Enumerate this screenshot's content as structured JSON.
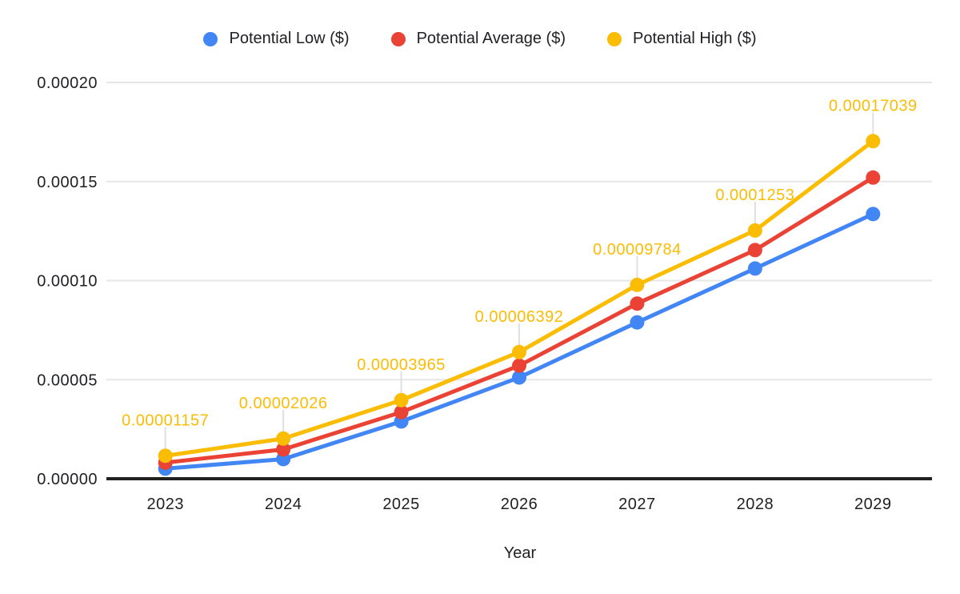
{
  "colors": {
    "background": "#ffffff",
    "grid_line": "#e6e6e6",
    "axis_line": "#212121",
    "connector_line": "#e0e0e0",
    "text": "#202124",
    "series_low": "#4285f4",
    "series_average": "#ea4335",
    "series_high": "#fbbc04"
  },
  "legend": {
    "items": [
      {
        "label": "Potential Low ($)",
        "color": "#4285f4"
      },
      {
        "label": "Potential Average ($)",
        "color": "#ea4335"
      },
      {
        "label": "Potential High ($)",
        "color": "#fbbc04"
      }
    ]
  },
  "chart_data": {
    "type": "line",
    "title": "",
    "xlabel": "Year",
    "ylabel": "",
    "categories": [
      "2023",
      "2024",
      "2025",
      "2026",
      "2027",
      "2028",
      "2029"
    ],
    "ylim": [
      0,
      0.0002
    ],
    "yticks": [
      "0.00000",
      "0.00005",
      "0.00010",
      "0.00015",
      "0.00020"
    ],
    "grid": true,
    "legend_position": "top",
    "series": [
      {
        "name": "Potential Low ($)",
        "color": "#4285f4",
        "values": [
          5.1e-06,
          9.9e-06,
          2.89e-05,
          5.11e-05,
          7.89e-05,
          0.0001061,
          0.0001336
        ]
      },
      {
        "name": "Potential Average ($)",
        "color": "#ea4335",
        "values": [
          8.1e-06,
          1.48e-05,
          3.36e-05,
          5.71e-05,
          8.84e-05,
          0.0001154,
          0.000152
        ]
      },
      {
        "name": "Potential High ($)",
        "color": "#fbbc04",
        "values": [
          1.157e-05,
          2.026e-05,
          3.965e-05,
          6.392e-05,
          9.784e-05,
          0.0001253,
          0.00017039
        ],
        "point_labels": [
          "0.00001157",
          "0.00002026",
          "0.00003965",
          "0.00006392",
          "0.00009784",
          "0.0001253",
          "0.00017039"
        ]
      }
    ]
  }
}
